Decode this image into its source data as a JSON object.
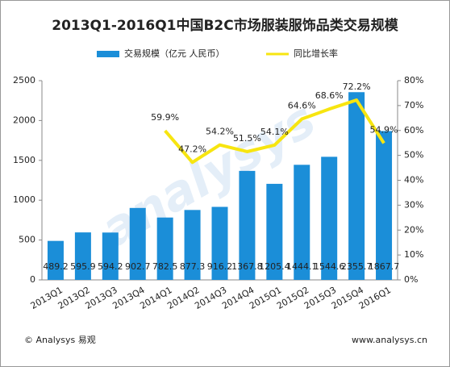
{
  "chart_data": {
    "type": "bar",
    "title": "2013Q1-2016Q1中国B2C市场服装服饰品类交易规模",
    "watermark": "analysys",
    "footer_left": "© Analysys 易观",
    "footer_right": "www.analysys.cn",
    "categories": [
      "2013Q1",
      "2013Q2",
      "2013Q3",
      "2013Q4",
      "2014Q1",
      "2014Q2",
      "2014Q3",
      "2014Q4",
      "2015Q1",
      "2015Q2",
      "2015Q3",
      "2015Q4",
      "2016Q1"
    ],
    "series": [
      {
        "name": "交易规模（亿元 人民币）",
        "color": "#1b8ed8",
        "type": "bar",
        "values": [
          489.2,
          595.9,
          594.2,
          902.7,
          782.5,
          877.3,
          916.2,
          1367.8,
          1205.4,
          1444.1,
          1544.6,
          2355.7,
          1867.7
        ]
      },
      {
        "name": "同比增长率",
        "color": "#f7e510",
        "type": "line",
        "axis": "y2",
        "values": [
          null,
          null,
          null,
          null,
          59.9,
          47.2,
          54.2,
          51.5,
          54.1,
          64.6,
          68.6,
          72.2,
          54.9
        ],
        "value_labels": [
          null,
          null,
          null,
          null,
          "59.9%",
          "47.2%",
          "54.2%",
          "51.5%",
          "54.1%",
          "64.6%",
          "68.6%",
          "72.2%",
          "54.9%"
        ]
      }
    ],
    "ylim": [
      0,
      2500
    ],
    "yticks": [
      0,
      500,
      1000,
      1500,
      2000,
      2500
    ],
    "y2lim": [
      0,
      80
    ],
    "y2ticks": [
      {
        "value": 0,
        "label": "0%"
      },
      {
        "value": 10,
        "label": "10%"
      },
      {
        "value": 20,
        "label": "20%"
      },
      {
        "value": 30,
        "label": "30%"
      },
      {
        "value": 40,
        "label": "40%"
      },
      {
        "value": 50,
        "label": "50%"
      },
      {
        "value": 60,
        "label": "60%"
      },
      {
        "value": 70,
        "label": "70%"
      },
      {
        "value": 80,
        "label": "80%"
      }
    ],
    "legend": "top"
  }
}
